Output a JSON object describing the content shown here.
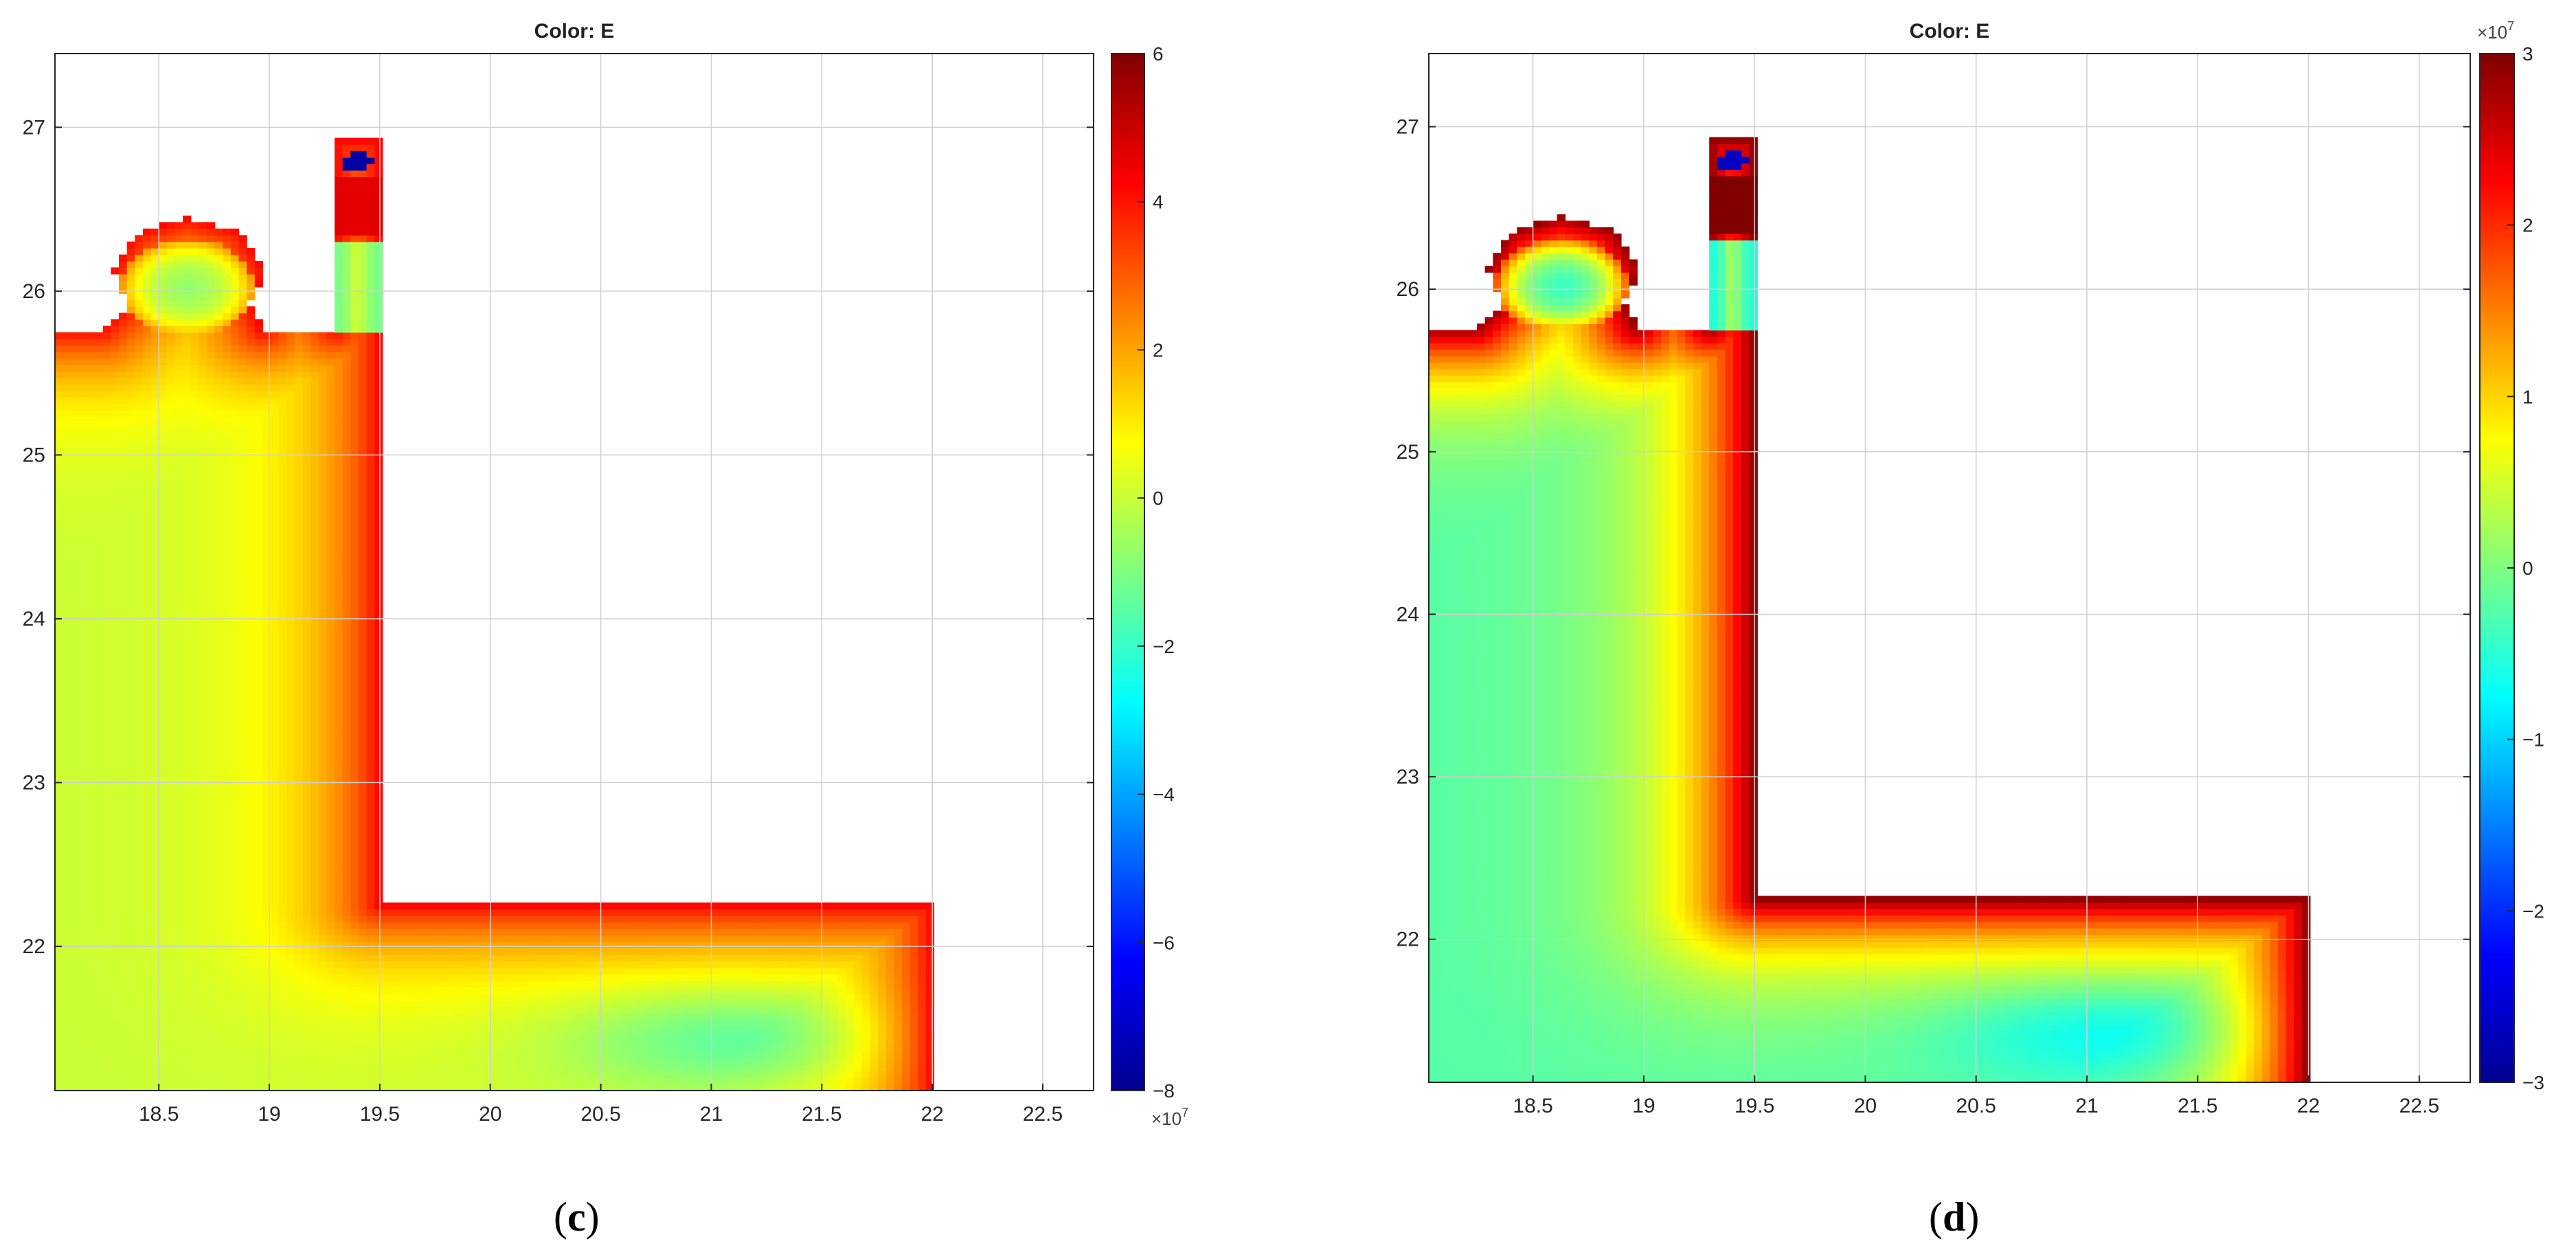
{
  "chart_data": [
    {
      "type": "heatmap",
      "panel_label": "c",
      "title": "Color: E",
      "xlabel": "",
      "ylabel": "",
      "xlim": [
        18.03,
        22.73
      ],
      "ylim": [
        21.12,
        27.45
      ],
      "x_ticks": [
        "18.5",
        "19",
        "19.5",
        "20",
        "20.5",
        "21",
        "21.5",
        "22",
        "22.5"
      ],
      "y_ticks": [
        "22",
        "23",
        "24",
        "25",
        "26",
        "27"
      ],
      "grid": true,
      "colormap": "jet",
      "colorbar": {
        "range": [
          -8,
          6
        ],
        "ticks": [
          "6",
          "4",
          "2",
          "0",
          "−2",
          "−4",
          "−6",
          "−8"
        ],
        "multiplier": "×10",
        "exponent": "7",
        "multiplier_position": "bottom"
      },
      "field_levels": {
        "background": 0.0,
        "boundary": 4.2,
        "inner_low": -1.7,
        "hot_box": 4.6,
        "hole": -7.5
      }
    },
    {
      "type": "heatmap",
      "panel_label": "d",
      "title": "Color: E",
      "xlabel": "",
      "ylabel": "",
      "xlim": [
        18.03,
        22.73
      ],
      "ylim": [
        21.12,
        27.45
      ],
      "x_ticks": [
        "18.5",
        "19",
        "19.5",
        "20",
        "20.5",
        "21",
        "21.5",
        "22",
        "22.5"
      ],
      "y_ticks": [
        "22",
        "23",
        "24",
        "25",
        "26",
        "27"
      ],
      "grid": true,
      "colormap": "jet",
      "colorbar": {
        "range": [
          -3,
          3
        ],
        "ticks": [
          "3",
          "2",
          "1",
          "0",
          "−1",
          "−2",
          "−3"
        ],
        "multiplier": "×10",
        "exponent": "7",
        "multiplier_position": "top"
      },
      "field_levels": {
        "background": -0.25,
        "boundary": 2.9,
        "inner_low": -0.9,
        "hot_box": 3.0,
        "hole": -2.6
      }
    }
  ]
}
